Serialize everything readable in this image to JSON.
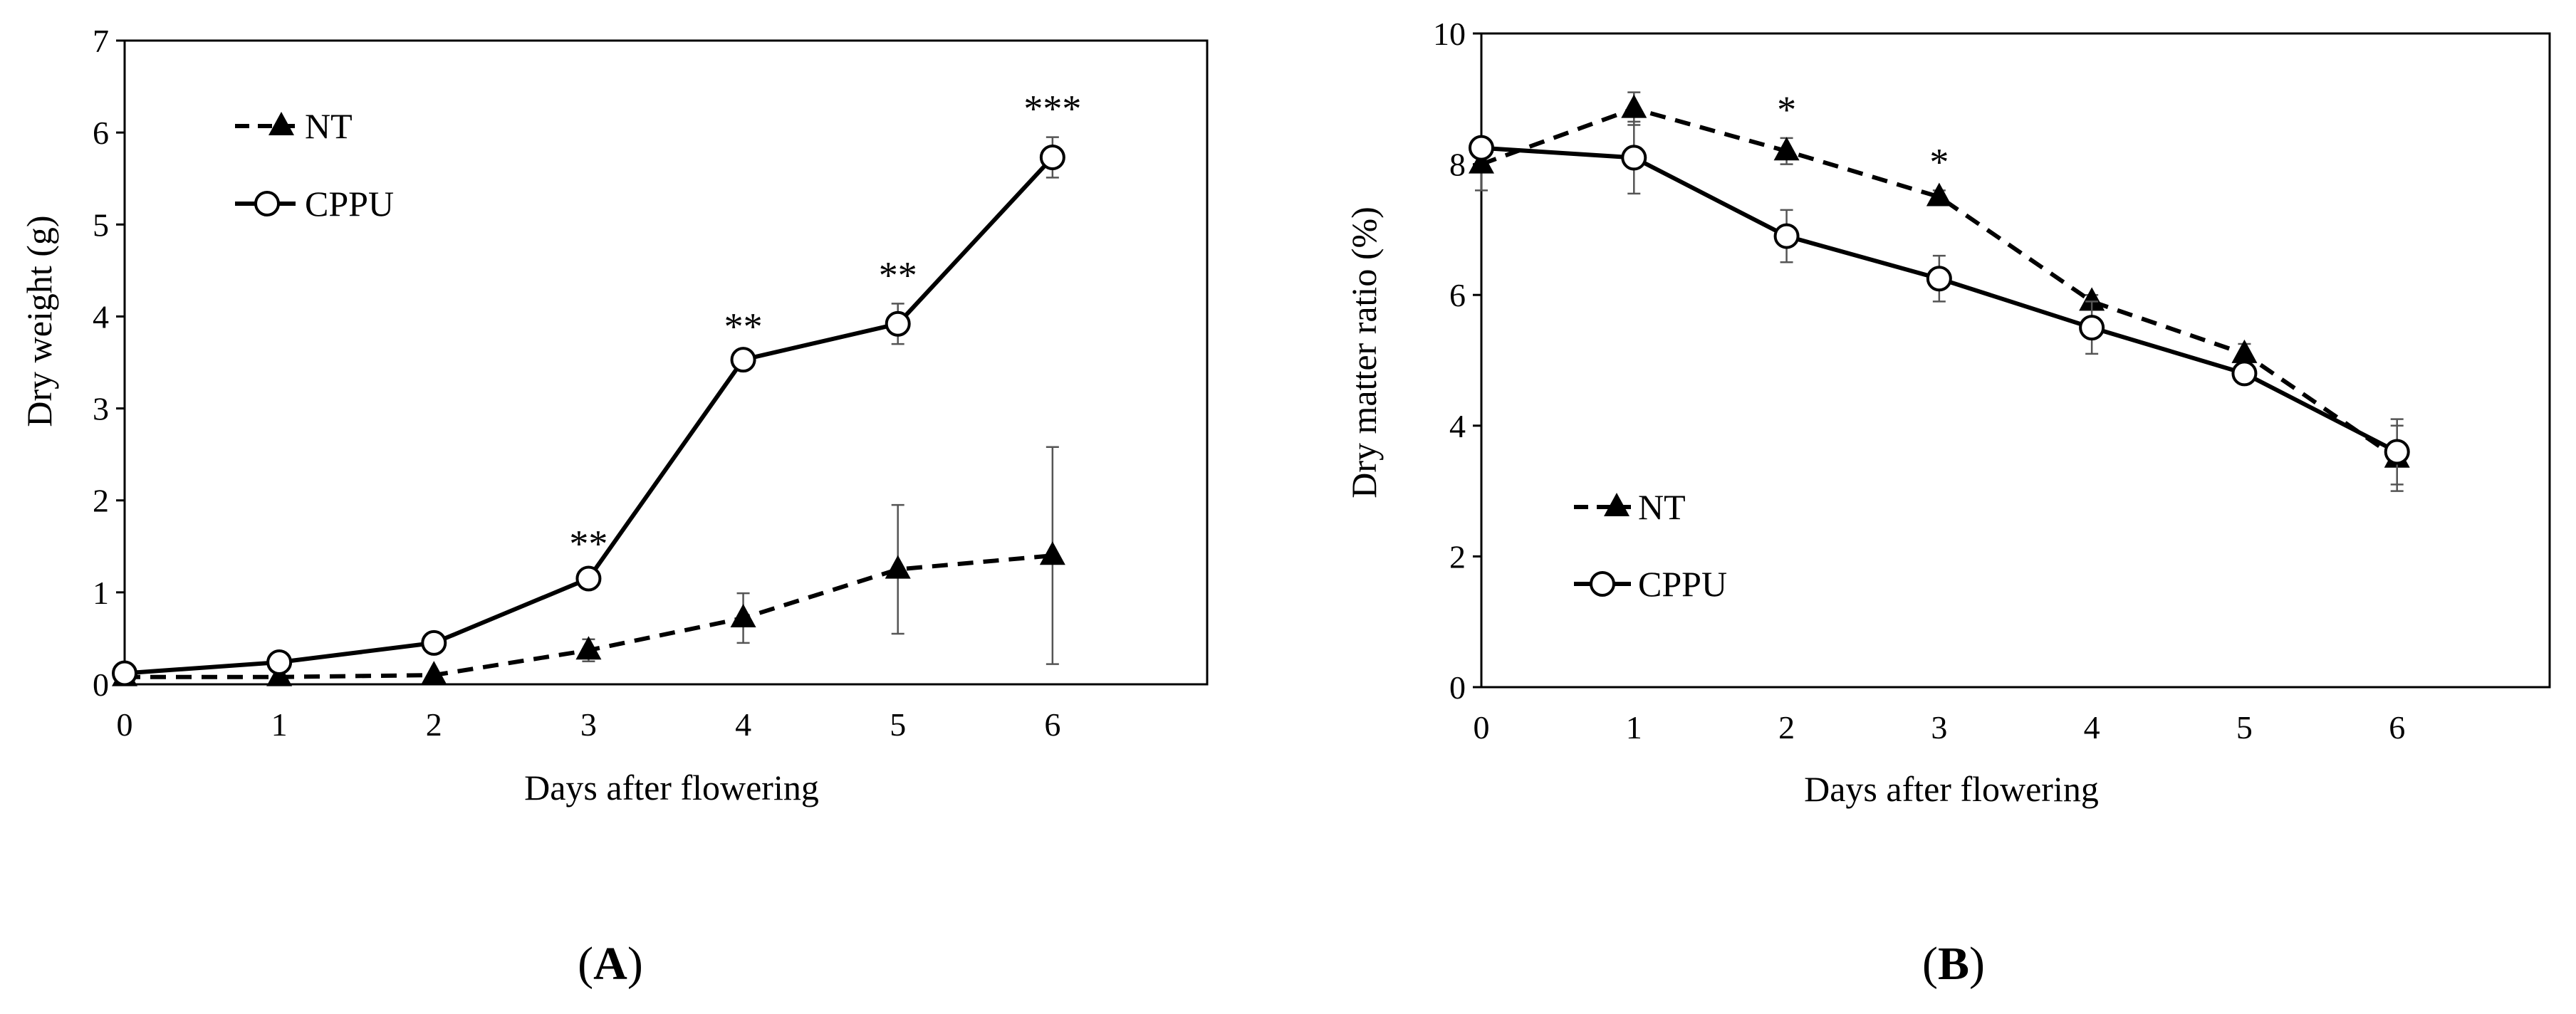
{
  "chart_data": [
    {
      "type": "line",
      "panel": "A",
      "panel_label_open": "(",
      "panel_label_letter": "A",
      "panel_label_close": ")",
      "xlabel": "Days after flowering",
      "ylabel": "Dry weight (g)",
      "x": [
        0,
        1,
        2,
        3,
        4,
        5,
        6
      ],
      "xlim": [
        0,
        7
      ],
      "ylim": [
        0,
        7
      ],
      "x_ticks": [
        0,
        1,
        2,
        3,
        4,
        5,
        6
      ],
      "y_ticks": [
        0,
        1,
        2,
        3,
        4,
        5,
        6,
        7
      ],
      "grid": false,
      "legend_position": "top-left",
      "series": [
        {
          "name": "NT",
          "line_style": "dashed",
          "marker": "filled-triangle",
          "values": [
            0.08,
            0.08,
            0.1,
            0.37,
            0.72,
            1.25,
            1.4
          ],
          "errors": [
            0,
            0,
            0,
            0.12,
            0.27,
            0.7,
            1.18
          ]
        },
        {
          "name": "CPPU",
          "line_style": "solid",
          "marker": "open-circle",
          "values": [
            0.12,
            0.24,
            0.45,
            1.15,
            3.53,
            3.92,
            5.73
          ],
          "errors": [
            0,
            0,
            0,
            0.07,
            0.05,
            0.22,
            0.22
          ]
        }
      ],
      "significance": [
        {
          "x": 3,
          "text": "**"
        },
        {
          "x": 4,
          "text": "**"
        },
        {
          "x": 5,
          "text": "**"
        },
        {
          "x": 6,
          "text": "***"
        }
      ]
    },
    {
      "type": "line",
      "panel": "B",
      "panel_label_open": "(",
      "panel_label_letter": "B",
      "panel_label_close": ")",
      "xlabel": "Days after flowering",
      "ylabel": "Dry matter ratio (%)",
      "x": [
        0,
        1,
        2,
        3,
        4,
        5,
        6
      ],
      "xlim": [
        0,
        7
      ],
      "ylim": [
        0,
        10
      ],
      "x_ticks": [
        0,
        1,
        2,
        3,
        4,
        5,
        6
      ],
      "y_ticks": [
        0,
        2,
        4,
        6,
        8,
        10
      ],
      "grid": false,
      "legend_position": "bottom-left",
      "series": [
        {
          "name": "NT",
          "line_style": "dashed",
          "marker": "filled-triangle",
          "values": [
            8.0,
            8.85,
            8.2,
            7.5,
            5.9,
            5.1,
            3.5
          ],
          "errors": [
            0.4,
            0.25,
            0.2,
            0.1,
            0.1,
            0.15,
            0.5
          ]
        },
        {
          "name": "CPPU",
          "line_style": "solid",
          "marker": "open-circle",
          "values": [
            8.25,
            8.1,
            6.9,
            6.25,
            5.5,
            4.8,
            3.6
          ],
          "errors": [
            0.15,
            0.55,
            0.4,
            0.35,
            0.4,
            0.15,
            0.5
          ]
        }
      ],
      "significance": [
        {
          "x": 2,
          "text": "*"
        },
        {
          "x": 3,
          "text": "*"
        }
      ]
    }
  ]
}
